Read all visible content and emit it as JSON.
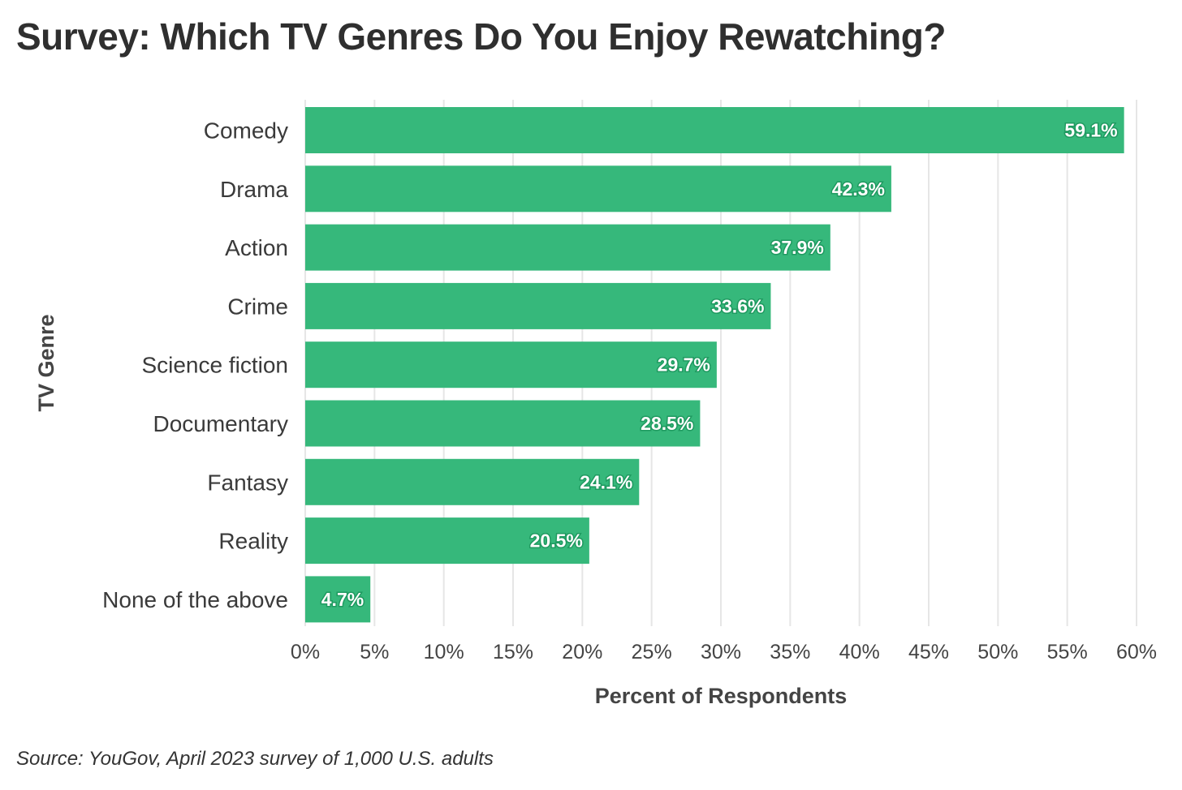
{
  "chart_data": {
    "type": "bar",
    "orientation": "horizontal",
    "title": "Survey: Which TV Genres Do You Enjoy Rewatching?",
    "xlabel": "Percent of Respondents",
    "ylabel": "TV Genre",
    "categories": [
      "Comedy",
      "Drama",
      "Action",
      "Crime",
      "Science fiction",
      "Documentary",
      "Fantasy",
      "Reality",
      "None of the above"
    ],
    "values": [
      59.1,
      42.3,
      37.9,
      33.6,
      29.7,
      28.5,
      24.1,
      20.5,
      4.7
    ],
    "data_labels": [
      "59.1%",
      "42.3%",
      "37.9%",
      "33.6%",
      "29.7%",
      "28.5%",
      "24.1%",
      "20.5%",
      "4.7%"
    ],
    "xlim": [
      0,
      60
    ],
    "xticks": [
      0,
      5,
      10,
      15,
      20,
      25,
      30,
      35,
      40,
      45,
      50,
      55,
      60
    ],
    "xtick_labels": [
      "0%",
      "5%",
      "10%",
      "15%",
      "20%",
      "25%",
      "30%",
      "35%",
      "40%",
      "45%",
      "50%",
      "55%",
      "60%"
    ],
    "grid": "vertical",
    "legend": "none",
    "bar_color": "#36b87b",
    "label_stroke_color": "#1f9a60"
  },
  "source_note": "Source: YouGov, April 2023 survey of 1,000 U.S. adults"
}
